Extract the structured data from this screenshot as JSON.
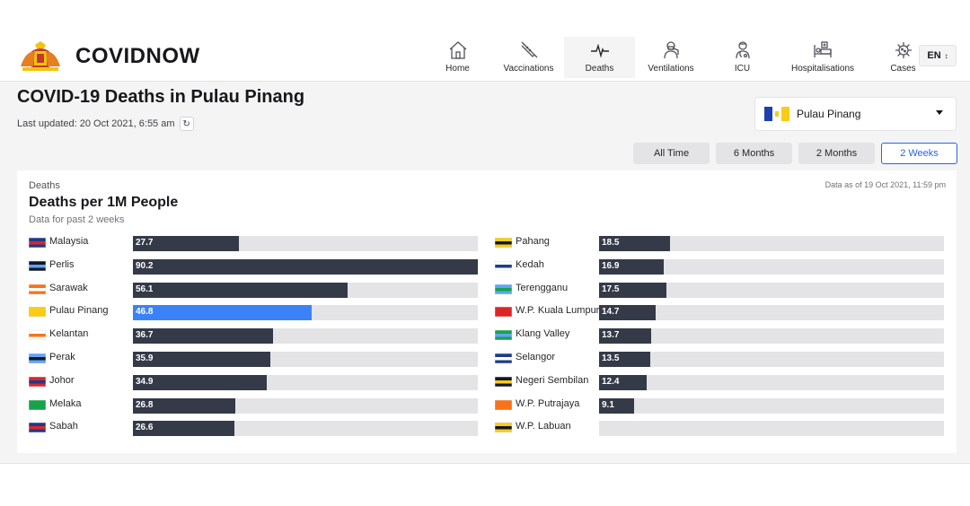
{
  "app": {
    "brand": "COVIDNOW"
  },
  "nav": [
    {
      "label": "Home",
      "icon": "home-icon"
    },
    {
      "label": "Vaccinations",
      "icon": "syringe-icon"
    },
    {
      "label": "Deaths",
      "icon": "heartbeat-icon",
      "active": true
    },
    {
      "label": "Ventilations",
      "icon": "ventilator-icon"
    },
    {
      "label": "ICU",
      "icon": "doctor-icon"
    },
    {
      "label": "Hospitalisations",
      "icon": "hospital-bed-icon"
    },
    {
      "label": "Cases",
      "icon": "virus-icon"
    }
  ],
  "lang": {
    "value": "EN"
  },
  "page": {
    "title": "COVID-19 Deaths in Pulau Pinang",
    "updated": "Last updated: 20 Oct 2021, 6:55 am"
  },
  "state_select": {
    "value": "Pulau Pinang"
  },
  "tabs": [
    {
      "label": "All Time"
    },
    {
      "label": "6 Months"
    },
    {
      "label": "2 Months"
    },
    {
      "label": "2 Weeks",
      "active": true
    }
  ],
  "card": {
    "category": "Deaths",
    "title": "Deaths per 1M People",
    "subtitle": "Data for past 2 weeks",
    "as_of": "Data as of 19 Oct 2021, 11:59 pm"
  },
  "colors": {
    "bar": "#343a48",
    "highlight": "#3b82f6",
    "track": "#e4e4e7"
  },
  "chart_data": {
    "type": "bar",
    "orientation": "horizontal",
    "xlim": [
      0,
      90.2
    ],
    "highlight": "Pulau Pinang",
    "left": [
      {
        "name": "Malaysia",
        "value": 27.7
      },
      {
        "name": "Perlis",
        "value": 90.2
      },
      {
        "name": "Sarawak",
        "value": 56.1
      },
      {
        "name": "Pulau Pinang",
        "value": 46.8
      },
      {
        "name": "Kelantan",
        "value": 36.7
      },
      {
        "name": "Perak",
        "value": 35.9
      },
      {
        "name": "Johor",
        "value": 34.9
      },
      {
        "name": "Melaka",
        "value": 26.8
      },
      {
        "name": "Sabah",
        "value": 26.6
      }
    ],
    "right": [
      {
        "name": "Pahang",
        "value": 18.5
      },
      {
        "name": "Kedah",
        "value": 16.9
      },
      {
        "name": "Terengganu",
        "value": 17.5
      },
      {
        "name": "W.P. Kuala Lumpur",
        "value": 14.7
      },
      {
        "name": "Klang Valley",
        "value": 13.7
      },
      {
        "name": "Selangor",
        "value": 13.5
      },
      {
        "name": "Negeri Sembilan",
        "value": 12.4
      },
      {
        "name": "W.P. Putrajaya",
        "value": 9.1
      },
      {
        "name": "W.P. Labuan",
        "value": null
      }
    ]
  }
}
